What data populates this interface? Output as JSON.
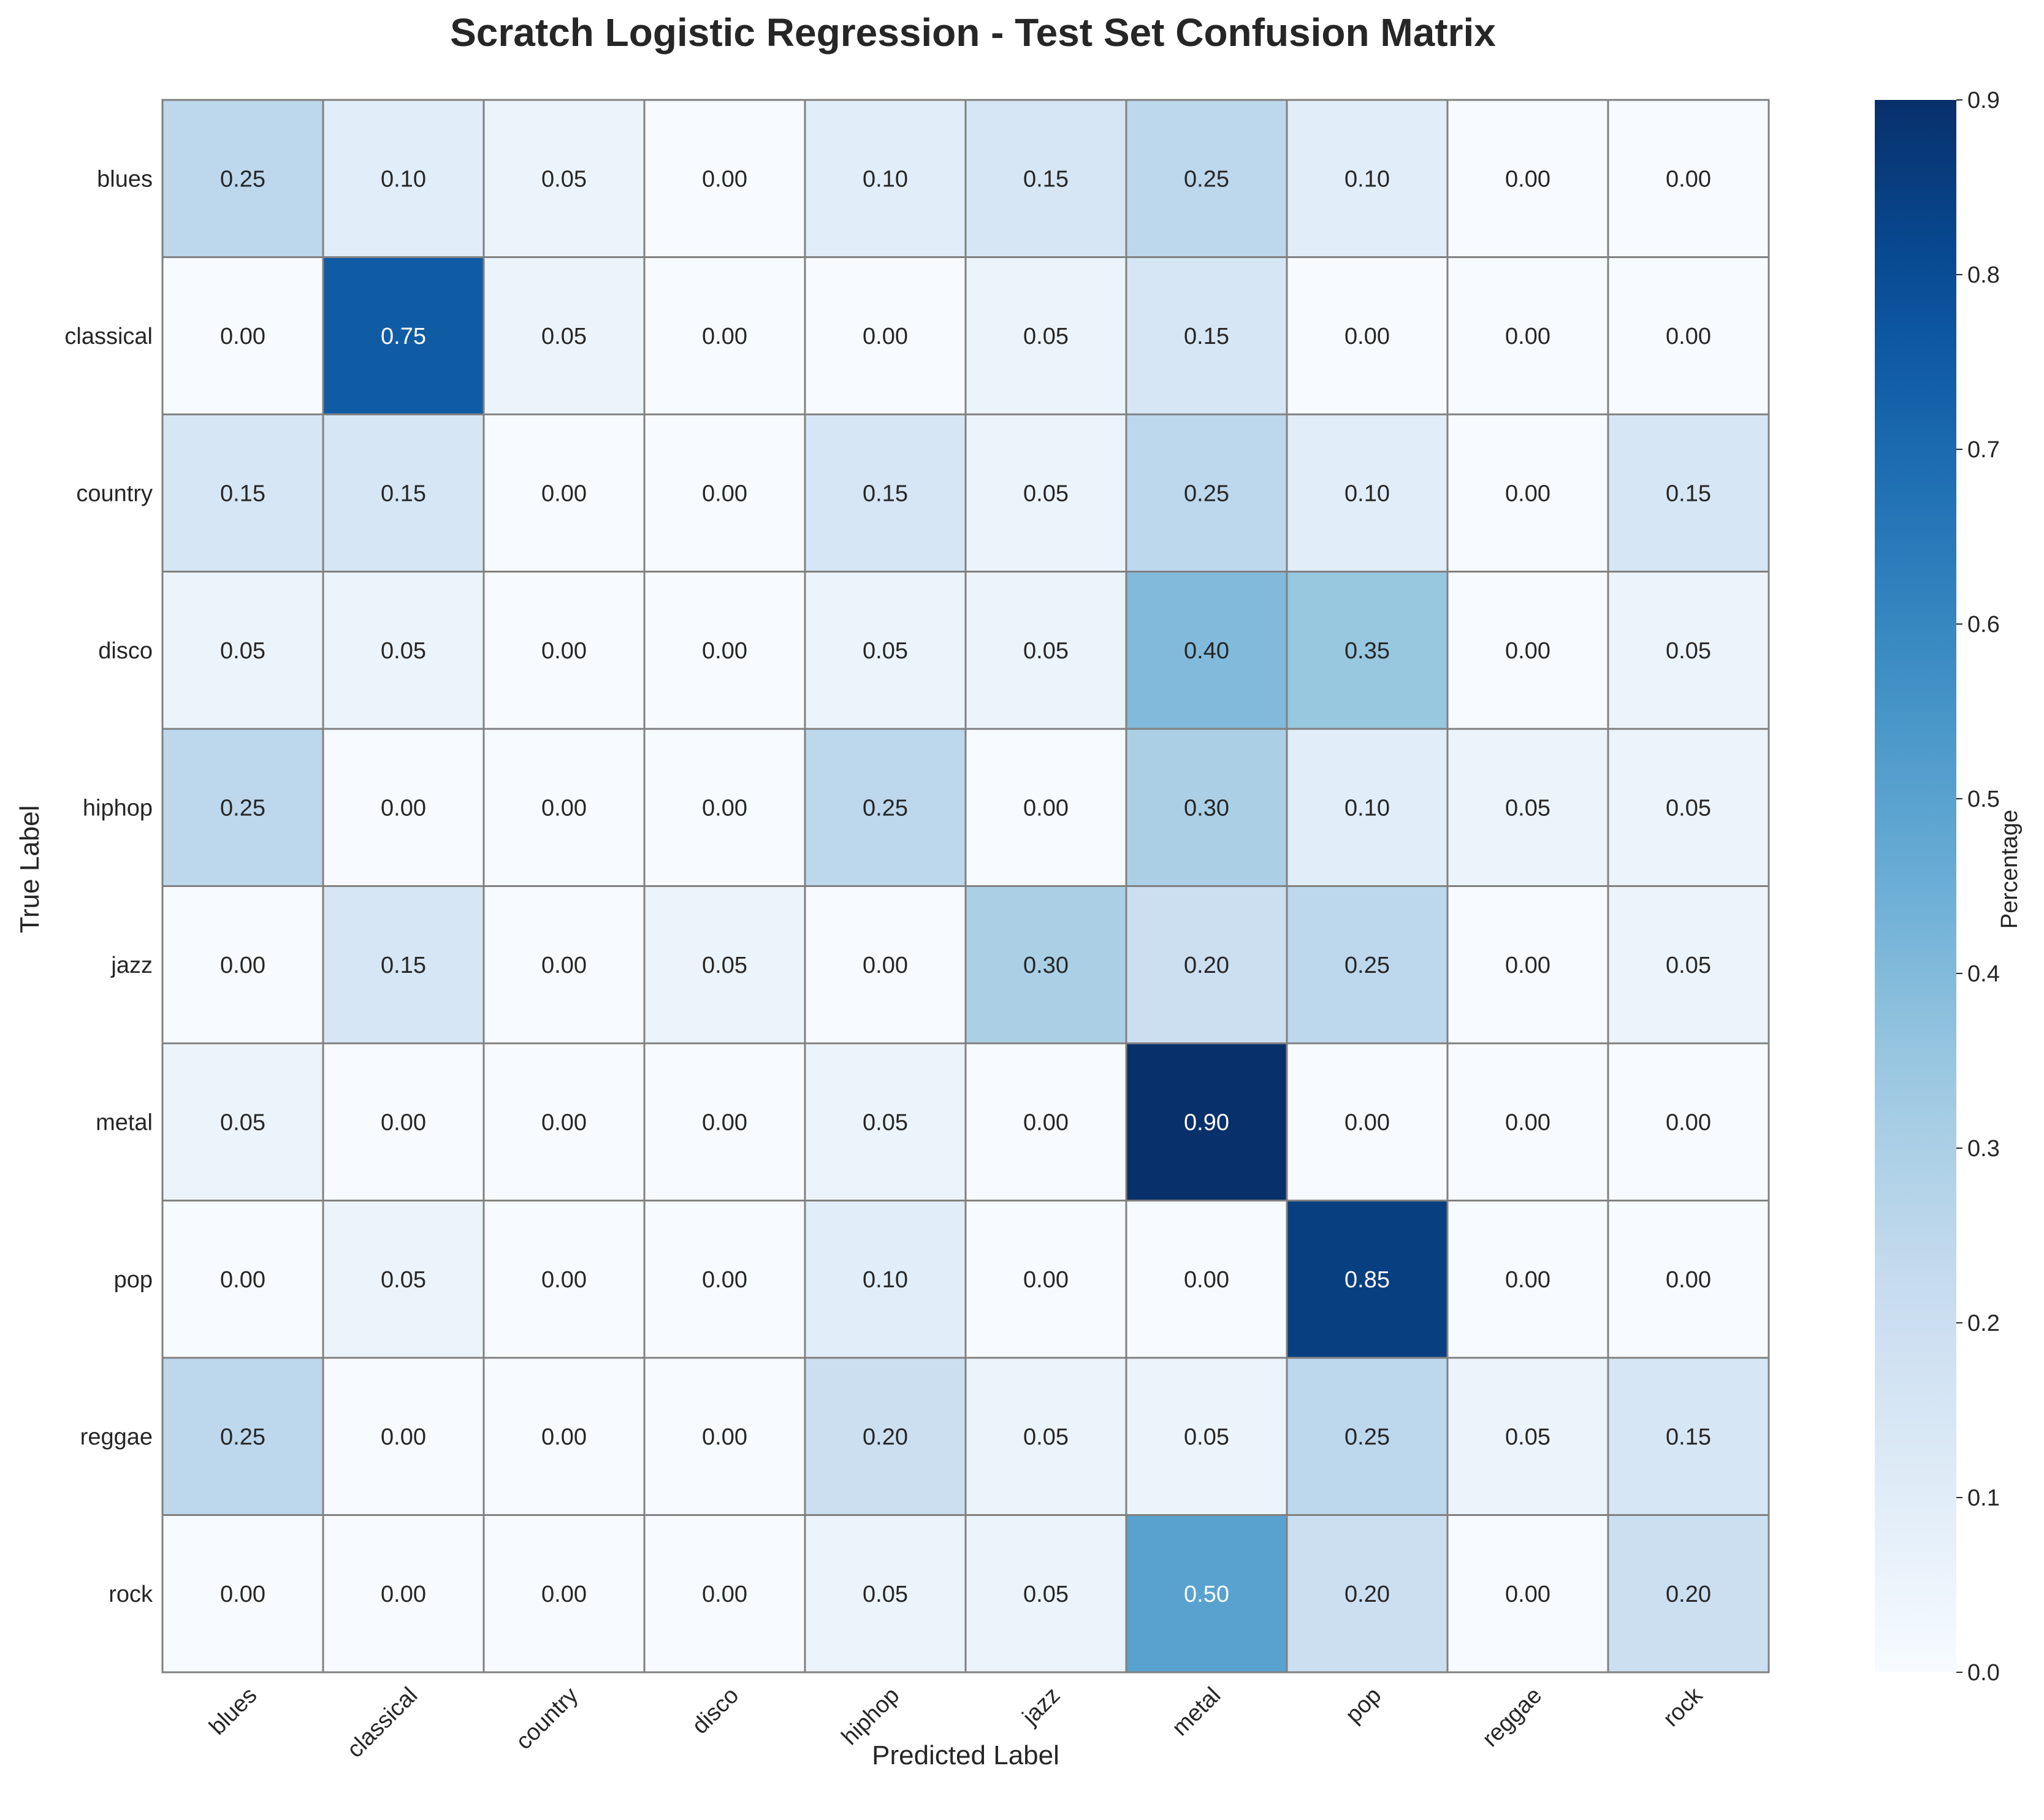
{
  "chart_data": {
    "type": "heatmap",
    "title": "Scratch Logistic Regression - Test Set Confusion Matrix",
    "xlabel": "Predicted Label",
    "ylabel": "True Label",
    "x_categories": [
      "blues",
      "classical",
      "country",
      "disco",
      "hiphop",
      "jazz",
      "metal",
      "pop",
      "reggae",
      "rock"
    ],
    "y_categories": [
      "blues",
      "classical",
      "country",
      "disco",
      "hiphop",
      "jazz",
      "metal",
      "pop",
      "reggae",
      "rock"
    ],
    "values": [
      [
        0.25,
        0.1,
        0.05,
        0.0,
        0.1,
        0.15,
        0.25,
        0.1,
        0.0,
        0.0
      ],
      [
        0.0,
        0.75,
        0.05,
        0.0,
        0.0,
        0.05,
        0.15,
        0.0,
        0.0,
        0.0
      ],
      [
        0.15,
        0.15,
        0.0,
        0.0,
        0.15,
        0.05,
        0.25,
        0.1,
        0.0,
        0.15
      ],
      [
        0.05,
        0.05,
        0.0,
        0.0,
        0.05,
        0.05,
        0.4,
        0.35,
        0.0,
        0.05
      ],
      [
        0.25,
        0.0,
        0.0,
        0.0,
        0.25,
        0.0,
        0.3,
        0.1,
        0.05,
        0.05
      ],
      [
        0.0,
        0.15,
        0.0,
        0.05,
        0.0,
        0.3,
        0.2,
        0.25,
        0.0,
        0.05
      ],
      [
        0.05,
        0.0,
        0.0,
        0.0,
        0.05,
        0.0,
        0.9,
        0.0,
        0.0,
        0.0
      ],
      [
        0.0,
        0.05,
        0.0,
        0.0,
        0.1,
        0.0,
        0.0,
        0.85,
        0.0,
        0.0
      ],
      [
        0.25,
        0.0,
        0.0,
        0.0,
        0.2,
        0.05,
        0.05,
        0.25,
        0.05,
        0.15
      ],
      [
        0.0,
        0.0,
        0.0,
        0.0,
        0.05,
        0.05,
        0.5,
        0.2,
        0.0,
        0.2
      ]
    ],
    "colorbar": {
      "label": "Percentage",
      "range": [
        0.0,
        0.9
      ],
      "ticks": [
        "0.0",
        "0.1",
        "0.2",
        "0.3",
        "0.4",
        "0.5",
        "0.6",
        "0.7",
        "0.8",
        "0.9"
      ],
      "colormap": "Blues"
    },
    "grid": false
  }
}
